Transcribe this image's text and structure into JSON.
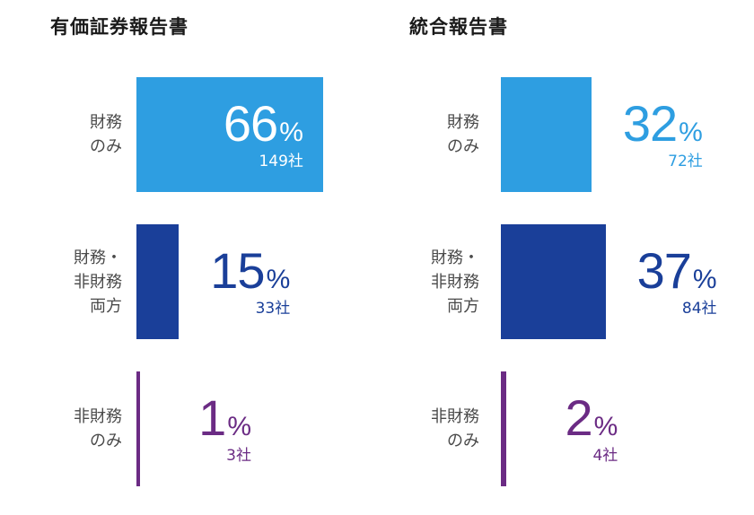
{
  "chart_data": [
    {
      "type": "bar",
      "title": "有価証券報告書",
      "categories": [
        "財務\nのみ",
        "財務・\n非財務\n両方",
        "非財務\nのみ"
      ],
      "values": [
        66,
        15,
        1
      ],
      "value_labels": [
        "66",
        "15",
        "1"
      ],
      "percent_sign": "%",
      "counts": [
        "149社",
        "33社",
        "3社"
      ],
      "colors": [
        "#2e9ee1",
        "#1a3f99",
        "#6b2b84"
      ]
    },
    {
      "type": "bar",
      "title": "統合報告書",
      "categories": [
        "財務\nのみ",
        "財務・\n非財務\n両方",
        "非財務\nのみ"
      ],
      "values": [
        32,
        37,
        2
      ],
      "value_labels": [
        "32",
        "37",
        "2"
      ],
      "percent_sign": "%",
      "counts": [
        "72社",
        "84社",
        "4社"
      ],
      "colors": [
        "#2e9ee1",
        "#1a3f99",
        "#6b2b84"
      ]
    }
  ]
}
